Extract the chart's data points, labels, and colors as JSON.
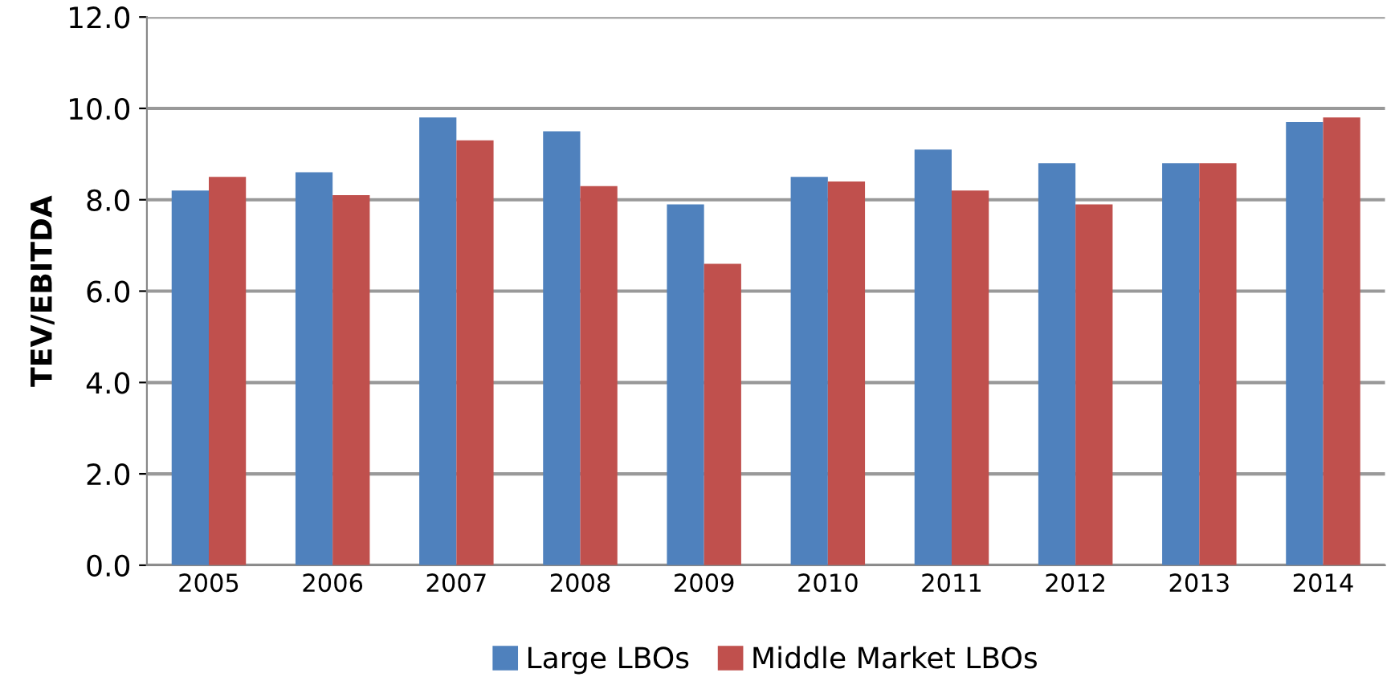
{
  "chart_data": {
    "type": "bar",
    "ylabel": "TEV/EBITDA",
    "categories": [
      "2005",
      "2006",
      "2007",
      "2008",
      "2009",
      "2010",
      "2011",
      "2012",
      "2013",
      "2014"
    ],
    "series": [
      {
        "name": "Large LBOs",
        "color": "#4f81bd",
        "values": [
          8.2,
          8.6,
          9.8,
          9.5,
          7.9,
          8.5,
          9.1,
          8.8,
          8.8,
          9.7
        ]
      },
      {
        "name": "Middle Market LBOs",
        "color": "#c0504d",
        "values": [
          8.5,
          8.1,
          9.3,
          8.3,
          6.6,
          8.4,
          8.2,
          7.9,
          8.8,
          9.8
        ]
      }
    ],
    "ylim": [
      0,
      12
    ],
    "yticks": [
      {
        "value": 0,
        "label": "0.0"
      },
      {
        "value": 2,
        "label": "2.0"
      },
      {
        "value": 4,
        "label": "4.0"
      },
      {
        "value": 6,
        "label": "6.0"
      },
      {
        "value": 8,
        "label": "8.0"
      },
      {
        "value": 10,
        "label": "10.0"
      },
      {
        "value": 12,
        "label": "12.0"
      }
    ],
    "grid": "y",
    "legend": "bottom"
  }
}
